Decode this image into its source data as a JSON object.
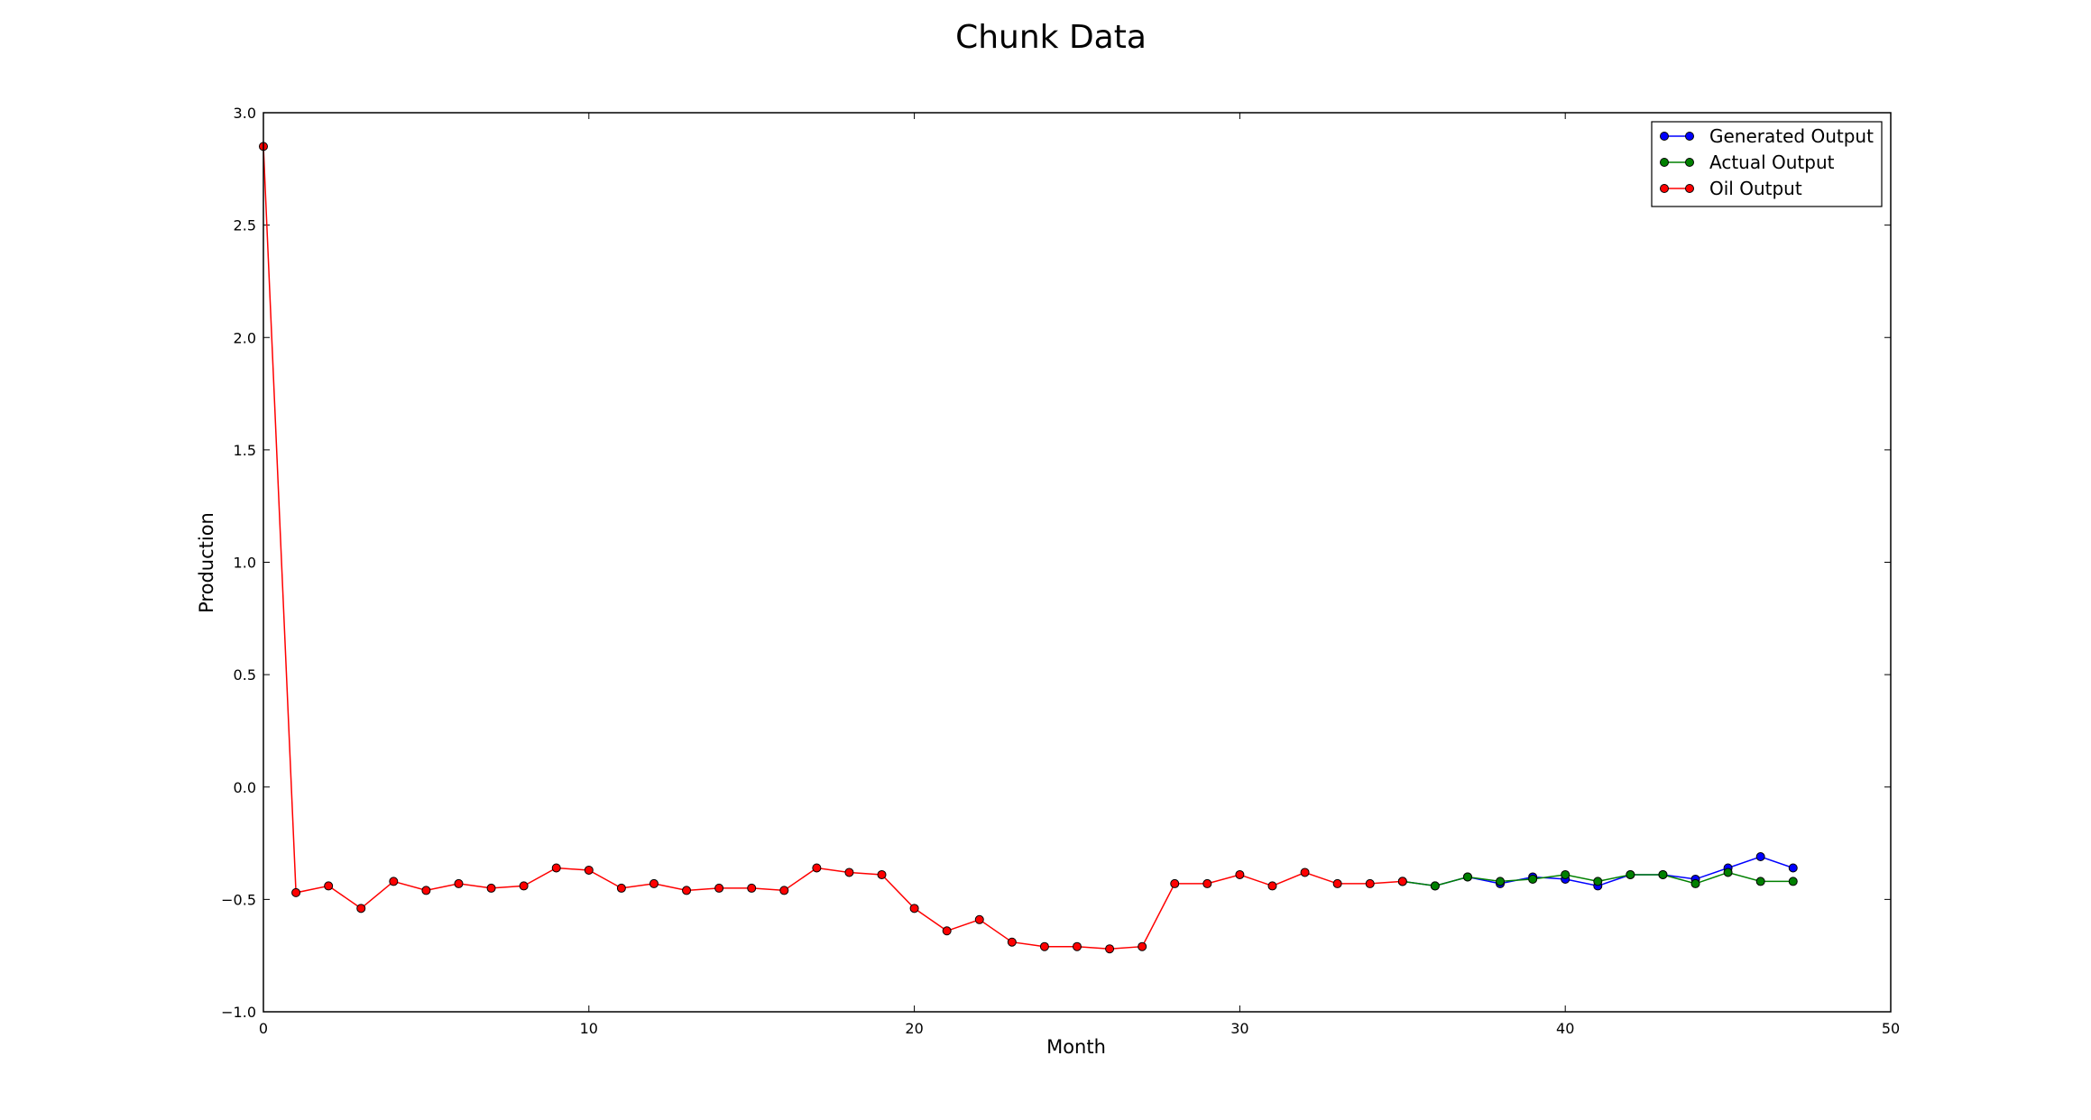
{
  "chart_data": {
    "type": "line",
    "title": "Chunk Data",
    "xlabel": "Month",
    "ylabel": "Production",
    "xlim": [
      0,
      50
    ],
    "ylim": [
      -1.0,
      3.0
    ],
    "xticks": [
      "0",
      "10",
      "20",
      "30",
      "40",
      "50"
    ],
    "yticks": [
      "−1.0",
      "−0.5",
      "0.0",
      "0.5",
      "1.0",
      "1.5",
      "2.0",
      "2.5",
      "3.0"
    ],
    "grid": false,
    "legend_position": "top-right",
    "series": [
      {
        "name": "Generated Output",
        "color": "#0000ff",
        "x": [
          35,
          36,
          37,
          38,
          39,
          40,
          41,
          42,
          43,
          44,
          45,
          46,
          47
        ],
        "y": [
          -0.42,
          -0.44,
          -0.4,
          -0.43,
          -0.4,
          -0.41,
          -0.44,
          -0.39,
          -0.39,
          -0.41,
          -0.36,
          -0.31,
          -0.36
        ]
      },
      {
        "name": "Actual Output",
        "color": "#008000",
        "x": [
          35,
          36,
          37,
          38,
          39,
          40,
          41,
          42,
          43,
          44,
          45,
          46,
          47
        ],
        "y": [
          -0.42,
          -0.44,
          -0.4,
          -0.42,
          -0.41,
          -0.39,
          -0.42,
          -0.39,
          -0.39,
          -0.43,
          -0.38,
          -0.42,
          -0.42
        ]
      },
      {
        "name": "Oil Output",
        "color": "#ff0000",
        "x": [
          0,
          1,
          2,
          3,
          4,
          5,
          6,
          7,
          8,
          9,
          10,
          11,
          12,
          13,
          14,
          15,
          16,
          17,
          18,
          19,
          20,
          21,
          22,
          23,
          24,
          25,
          26,
          27,
          28,
          29,
          30,
          31,
          32,
          33,
          34,
          35
        ],
        "y": [
          2.85,
          -0.47,
          -0.44,
          -0.54,
          -0.42,
          -0.46,
          -0.43,
          -0.45,
          -0.44,
          -0.36,
          -0.37,
          -0.45,
          -0.43,
          -0.46,
          -0.45,
          -0.45,
          -0.46,
          -0.36,
          -0.38,
          -0.39,
          -0.54,
          -0.64,
          -0.59,
          -0.69,
          -0.71,
          -0.71,
          -0.72,
          -0.71,
          -0.43,
          -0.43,
          -0.39,
          -0.44,
          -0.38,
          -0.43,
          -0.43,
          -0.42
        ]
      }
    ]
  }
}
